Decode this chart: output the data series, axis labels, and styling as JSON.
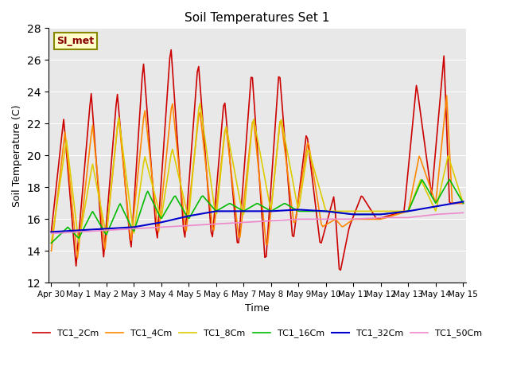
{
  "title": "Soil Temperatures Set 1",
  "xlabel": "Time",
  "ylabel": "Soil Temperature (C)",
  "ylim": [
    12,
    28
  ],
  "yticks": [
    12,
    14,
    16,
    18,
    20,
    22,
    24,
    26,
    28
  ],
  "annotation": "SI_met",
  "bg_color": "#e8e8e8",
  "fig_color": "#ffffff",
  "series_colors": {
    "TC1_2Cm": "#cc0000",
    "TC1_4Cm": "#ff8800",
    "TC1_8Cm": "#ddcc00",
    "TC1_16Cm": "#00bb00",
    "TC1_32Cm": "#0000cc",
    "TC1_50Cm": "#ee88cc"
  },
  "legend_labels": [
    "TC1_2Cm",
    "TC1_4Cm",
    "TC1_8Cm",
    "TC1_16Cm",
    "TC1_32Cm",
    "TC1_50Cm"
  ],
  "xtick_labels": [
    "Apr 30",
    "May 1",
    "May 2",
    "May 3",
    "May 4",
    "May 5",
    "May 6",
    "May 7",
    "May 8",
    "May 9",
    "May 10",
    "May 11",
    "May 12",
    "May 13",
    "May 14",
    "May 15"
  ],
  "xtick_positions": [
    0,
    1,
    2,
    3,
    4,
    5,
    6,
    7,
    8,
    9,
    10,
    11,
    12,
    13,
    14,
    15
  ]
}
